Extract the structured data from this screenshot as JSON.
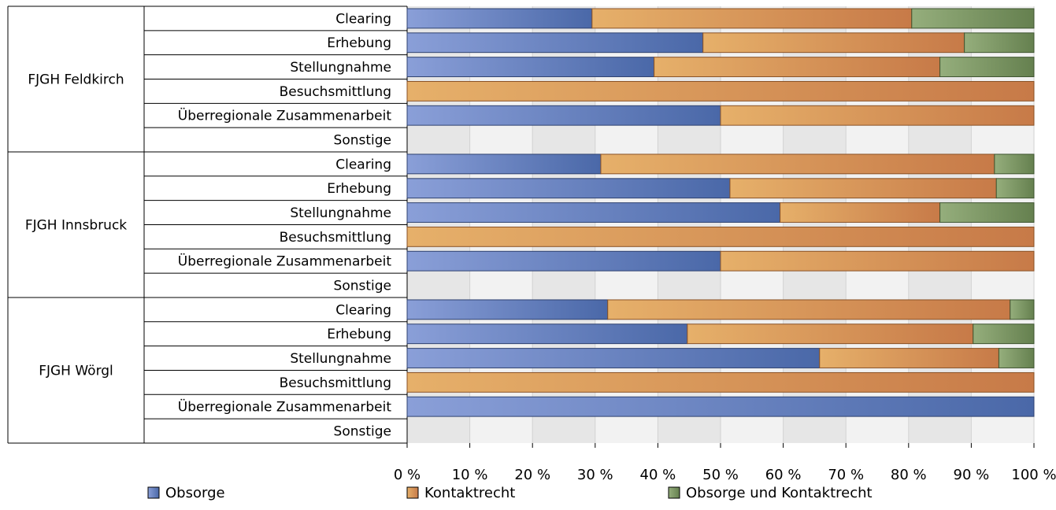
{
  "chart_data": {
    "type": "bar",
    "orientation": "horizontal",
    "stacked": "percent",
    "title": "",
    "xlabel": "",
    "ylabel": "",
    "xlim": [
      0,
      100
    ],
    "x_ticks": [
      "0 %",
      "10 %",
      "20 %",
      "30 %",
      "40 %",
      "50 %",
      "60 %",
      "70 %",
      "80 %",
      "90 %",
      "100 %"
    ],
    "grid": "vertical",
    "legend_position": "bottom",
    "groups": [
      {
        "name": "FJGH Feldkirch",
        "rows": [
          {
            "category": "Clearing",
            "values": [
              29.5,
              51.0,
              19.5
            ]
          },
          {
            "category": "Erhebung",
            "values": [
              47.2,
              41.7,
              11.1
            ]
          },
          {
            "category": "Stellungnahme",
            "values": [
              39.4,
              45.6,
              15.0
            ]
          },
          {
            "category": "Besuchsmittlung",
            "values": [
              0,
              100,
              0
            ]
          },
          {
            "category": "Überregionale Zusammenarbeit",
            "values": [
              50,
              50,
              0
            ]
          },
          {
            "category": "Sonstige",
            "values": [
              0,
              0,
              0
            ]
          }
        ]
      },
      {
        "name": "FJGH Innsbruck",
        "rows": [
          {
            "category": "Clearing",
            "values": [
              30.9,
              62.8,
              6.3
            ]
          },
          {
            "category": "Erhebung",
            "values": [
              51.5,
              42.5,
              6.0
            ]
          },
          {
            "category": "Stellungnahme",
            "values": [
              59.5,
              25.5,
              15.0
            ]
          },
          {
            "category": "Besuchsmittlung",
            "values": [
              0,
              100,
              0
            ]
          },
          {
            "category": "Überregionale Zusammenarbeit",
            "values": [
              50,
              50,
              0
            ]
          },
          {
            "category": "Sonstige",
            "values": [
              0,
              0,
              0
            ]
          }
        ]
      },
      {
        "name": "FJGH Wörgl",
        "rows": [
          {
            "category": "Clearing",
            "values": [
              32.0,
              64.2,
              3.8
            ]
          },
          {
            "category": "Erhebung",
            "values": [
              44.7,
              45.6,
              9.7
            ]
          },
          {
            "category": "Stellungnahme",
            "values": [
              65.8,
              28.6,
              5.6
            ]
          },
          {
            "category": "Besuchsmittlung",
            "values": [
              0,
              100,
              0
            ]
          },
          {
            "category": "Überregionale Zusammenarbeit",
            "values": [
              100,
              0,
              0
            ]
          },
          {
            "category": "Sonstige",
            "values": [
              0,
              0,
              0
            ]
          }
        ]
      }
    ],
    "series": [
      {
        "name": "Obsorge",
        "color_light": "#8a9fd8",
        "color_dark": "#4a68a8",
        "edge": "#2f4270"
      },
      {
        "name": "Kontaktrecht",
        "color_light": "#e6b06a",
        "color_dark": "#c77a48",
        "edge": "#8a5226"
      },
      {
        "name": "Obsorge und Kontaktrecht",
        "color_light": "#95ae7c",
        "color_dark": "#65804f",
        "edge": "#3f5530"
      }
    ]
  }
}
